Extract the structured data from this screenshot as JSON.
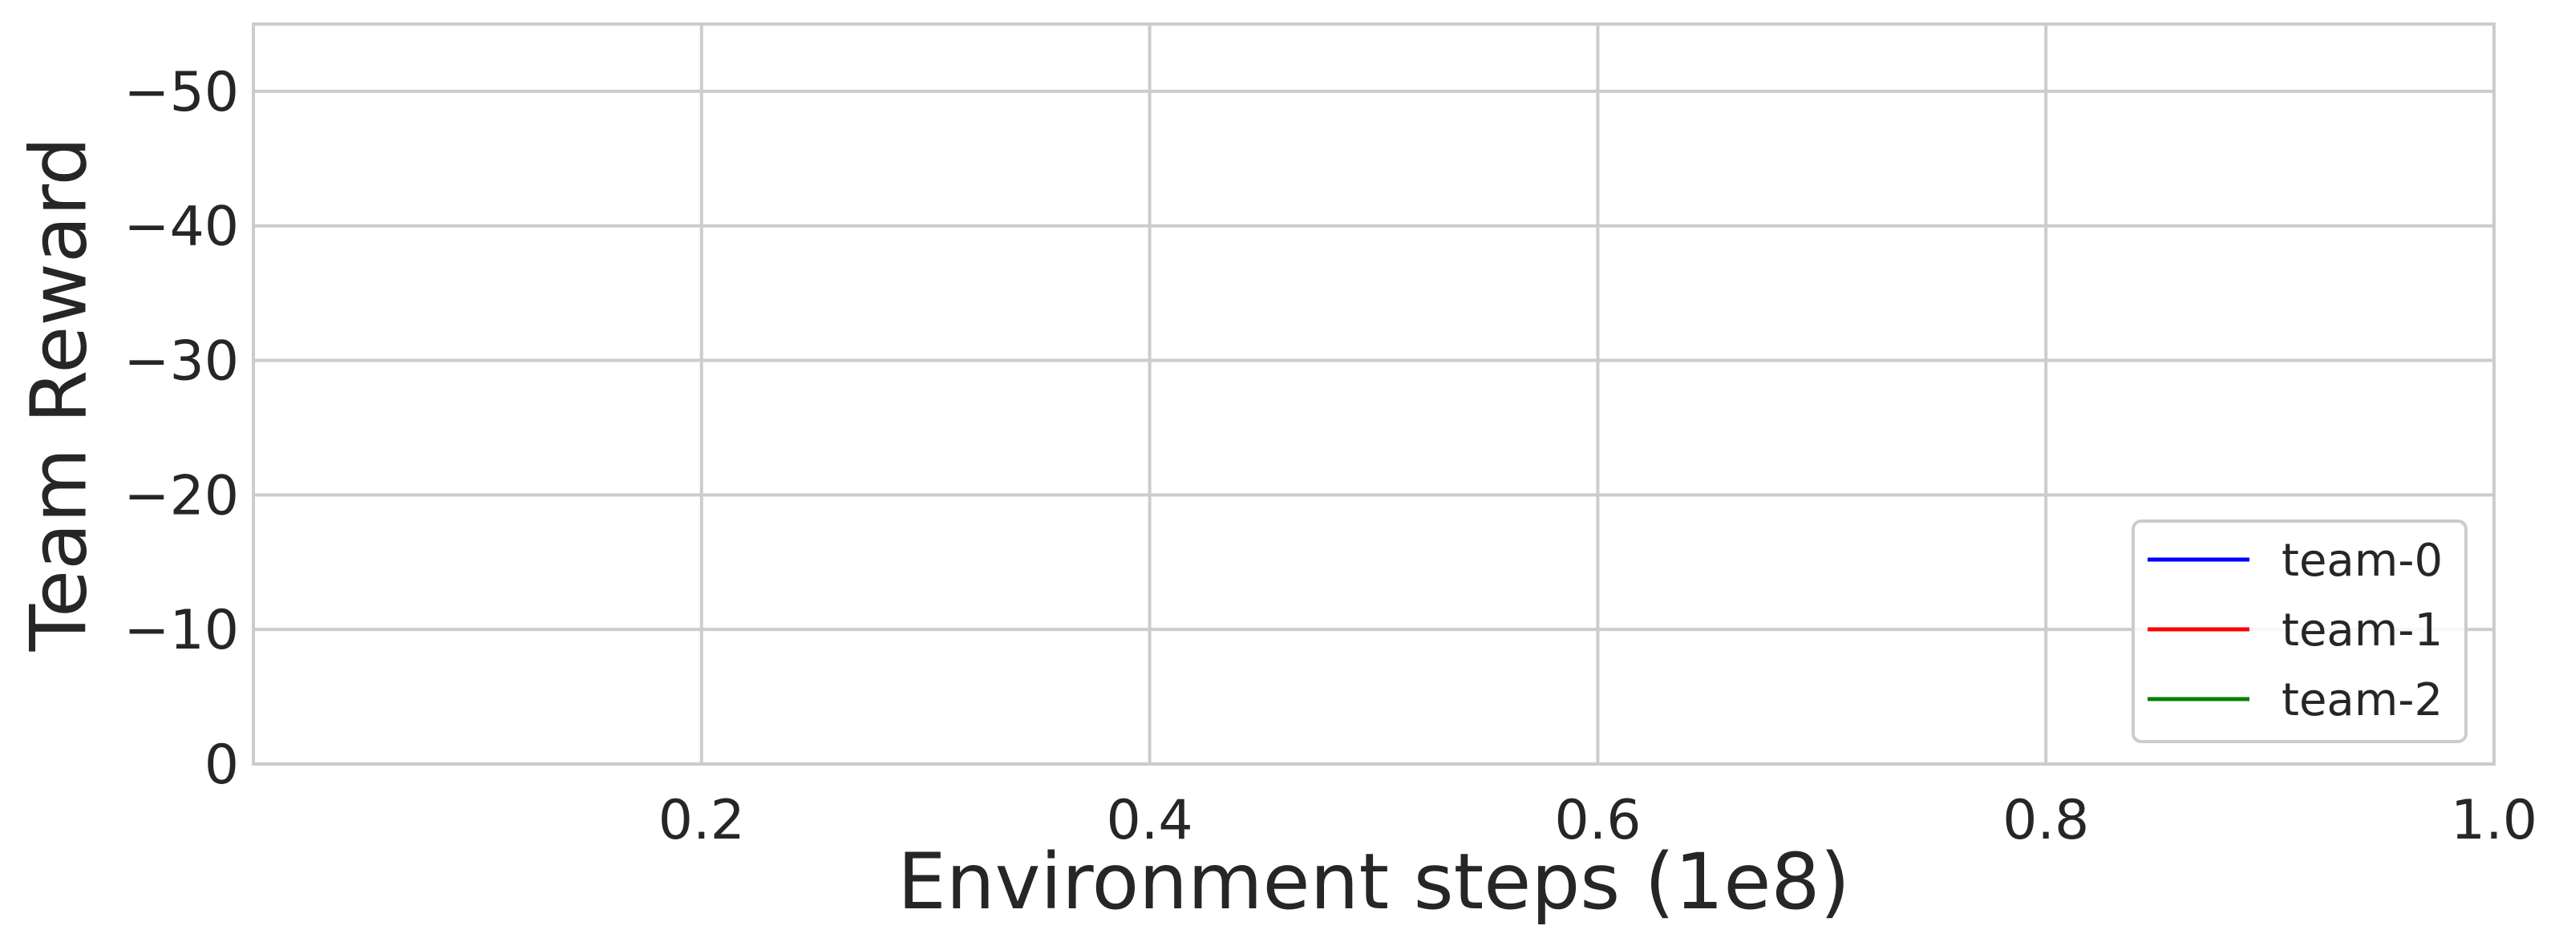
{
  "chart_data": {
    "type": "line",
    "title": "",
    "xlabel": "Environment steps (1e8)",
    "ylabel": "Team Reward",
    "xlim": [
      0.0,
      1.0
    ],
    "ylim": [
      0,
      -55
    ],
    "y_inverted": true,
    "xticks": [
      0.2,
      0.4,
      0.6,
      0.8,
      1.0
    ],
    "xtick_labels": [
      "0.2",
      "0.4",
      "0.6",
      "0.8",
      "1.0"
    ],
    "yticks": [
      0,
      -10,
      -20,
      -30,
      -40,
      -50
    ],
    "ytick_labels": [
      "0",
      "−10",
      "−20",
      "−30",
      "−40",
      "−50"
    ],
    "grid": true,
    "legend_position": "lower-right",
    "series": [
      {
        "name": "team-0",
        "color": "#0000ff",
        "x": [],
        "y": []
      },
      {
        "name": "team-1",
        "color": "#ff0000",
        "x": [],
        "y": []
      },
      {
        "name": "team-2",
        "color": "#008000",
        "x": [],
        "y": []
      }
    ]
  }
}
